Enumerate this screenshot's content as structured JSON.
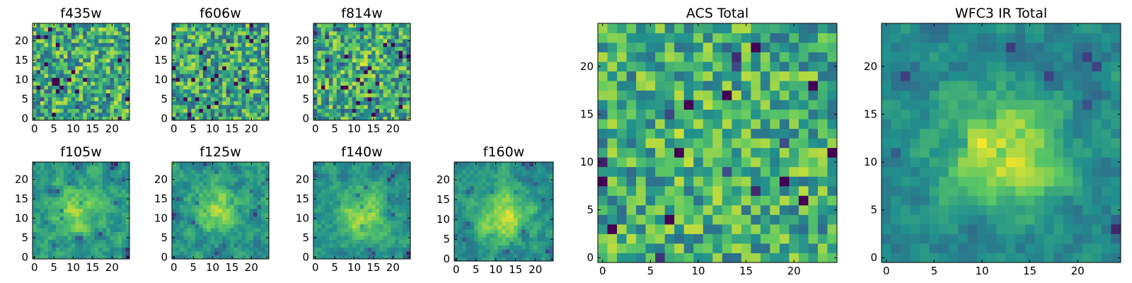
{
  "chart_data": [
    {
      "type": "heatmap",
      "title": "f435w",
      "x_ticks": [
        0,
        5,
        10,
        15,
        20
      ],
      "y_ticks": [
        0,
        5,
        10,
        15,
        20
      ],
      "size": [
        25,
        25
      ],
      "seed": 11,
      "base": 0.62,
      "noise": 0.62,
      "blob": 0.0,
      "blob_center": [
        12,
        12
      ],
      "blob_sigma": 5,
      "smooth": 0,
      "dark_rate": 0.05
    },
    {
      "type": "heatmap",
      "title": "f606w",
      "x_ticks": [
        0,
        5,
        10,
        15,
        20
      ],
      "y_ticks": [
        0,
        5,
        10,
        15,
        20
      ],
      "size": [
        25,
        25
      ],
      "seed": 23,
      "base": 0.6,
      "noise": 0.62,
      "blob": 0.0,
      "blob_center": [
        12,
        12
      ],
      "blob_sigma": 5,
      "smooth": 0,
      "dark_rate": 0.05
    },
    {
      "type": "heatmap",
      "title": "f814w",
      "x_ticks": [
        0,
        5,
        10,
        15,
        20
      ],
      "y_ticks": [
        0,
        5,
        10,
        15,
        20
      ],
      "size": [
        25,
        25
      ],
      "seed": 37,
      "base": 0.6,
      "noise": 0.62,
      "blob": 0.08,
      "blob_center": [
        10,
        13
      ],
      "blob_sigma": 4,
      "smooth": 0,
      "dark_rate": 0.06
    },
    {
      "type": "heatmap",
      "title": "f105w",
      "x_ticks": [
        0,
        5,
        10,
        15,
        20
      ],
      "y_ticks": [
        0,
        5,
        10,
        15,
        20
      ],
      "size": [
        25,
        25
      ],
      "seed": 41,
      "base": 0.55,
      "noise": 0.5,
      "blob": 0.3,
      "blob_center": [
        11,
        12
      ],
      "blob_sigma": 4,
      "smooth": 1,
      "dark_rate": 0.03
    },
    {
      "type": "heatmap",
      "title": "f125w",
      "x_ticks": [
        0,
        5,
        10,
        15,
        20
      ],
      "y_ticks": [
        0,
        5,
        10,
        15,
        20
      ],
      "size": [
        25,
        25
      ],
      "seed": 53,
      "base": 0.52,
      "noise": 0.5,
      "blob": 0.35,
      "blob_center": [
        11,
        12
      ],
      "blob_sigma": 4,
      "smooth": 1,
      "dark_rate": 0.03
    },
    {
      "type": "heatmap",
      "title": "f140w",
      "x_ticks": [
        0,
        5,
        10,
        15,
        20
      ],
      "y_ticks": [
        0,
        5,
        10,
        15,
        20
      ],
      "size": [
        25,
        25
      ],
      "seed": 67,
      "base": 0.5,
      "noise": 0.45,
      "blob": 0.4,
      "blob_center": [
        12,
        11
      ],
      "blob_sigma": 4.5,
      "smooth": 1,
      "dark_rate": 0.02
    },
    {
      "type": "heatmap",
      "title": "f160w",
      "x_ticks": [
        0,
        5,
        10,
        15,
        20
      ],
      "y_ticks": [
        0,
        5,
        10,
        15,
        20
      ],
      "size": [
        25,
        25
      ],
      "seed": 79,
      "base": 0.5,
      "noise": 0.45,
      "blob": 0.4,
      "blob_center": [
        12,
        11
      ],
      "blob_sigma": 4.5,
      "smooth": 1,
      "dark_rate": 0.02
    },
    {
      "type": "heatmap",
      "title": "ACS Total",
      "x_ticks": [
        0,
        5,
        10,
        15,
        20
      ],
      "y_ticks": [
        0,
        5,
        10,
        15,
        20
      ],
      "size": [
        25,
        25
      ],
      "seed": 97,
      "base": 0.62,
      "noise": 0.55,
      "blob": 0.12,
      "blob_center": [
        12,
        12
      ],
      "blob_sigma": 4,
      "smooth": 0,
      "dark_rate": 0.04
    },
    {
      "type": "heatmap",
      "title": "WFC3 IR Total",
      "x_ticks": [
        0,
        5,
        10,
        15,
        20
      ],
      "y_ticks": [
        0,
        5,
        10,
        15,
        20
      ],
      "size": [
        25,
        25
      ],
      "seed": 113,
      "base": 0.45,
      "noise": 0.42,
      "blob": 0.55,
      "blob_center": [
        12,
        11
      ],
      "blob_sigma": 4.2,
      "smooth": 1,
      "dark_rate": 0.025
    }
  ],
  "colormap": [
    "#440154",
    "#3b528b",
    "#21908d",
    "#5dc963",
    "#fde725"
  ]
}
